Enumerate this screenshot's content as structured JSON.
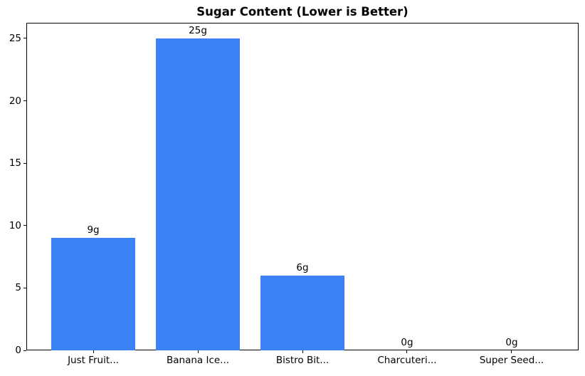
{
  "chart_data": {
    "type": "bar",
    "title": "Sugar Content (Lower is Better)",
    "categories": [
      "Just Fruit...",
      "Banana Ice...",
      "Bistro Bit...",
      "Charcuteri...",
      "Super Seed..."
    ],
    "values": [
      9,
      25,
      6,
      0,
      0
    ],
    "bar_labels": [
      "9g",
      "25g",
      "6g",
      "0g",
      "0g"
    ],
    "yticks": [
      0,
      5,
      10,
      15,
      20,
      25
    ],
    "ylim": [
      0,
      26.25
    ],
    "xlabel": "",
    "ylabel": "",
    "grid": false,
    "legend": "none",
    "bar_color": "#3b82f6",
    "text_color": "#000000",
    "axis_color": "#000000",
    "background_color": "#ffffff"
  }
}
